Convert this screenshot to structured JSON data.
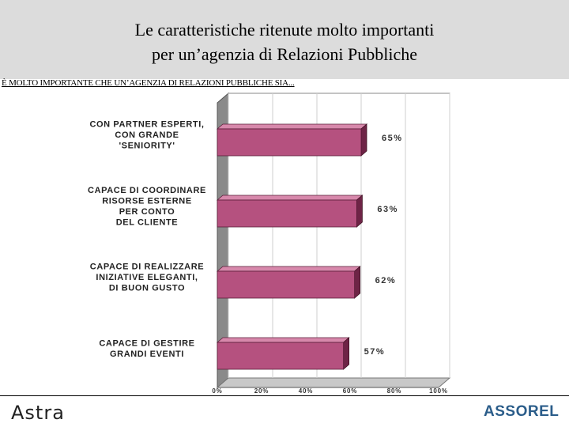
{
  "header": {
    "title_line1": "Le caratteristiche ritenute molto importanti",
    "title_line2": "per un’agenzia di Relazioni Pubbliche"
  },
  "subtitle": "È MOLTO IMPORTANTE CHE UN’AGENZIA DI RELAZIONI PUBBLICHE SIA...",
  "chart_data": {
    "type": "bar",
    "orientation": "horizontal",
    "categories": [
      [
        "CON PARTNER ESPERTI,",
        "CON GRANDE",
        "'SENIORITY'"
      ],
      [
        "CAPACE DI COORDINARE",
        "RISORSE ESTERNE",
        "PER CONTO",
        "DEL CLIENTE"
      ],
      [
        "CAPACE DI REALIZZARE",
        "INIZIATIVE ELEGANTI,",
        "DI BUON GUSTO"
      ],
      [
        "CAPACE DI GESTIRE",
        "GRANDI EVENTI"
      ]
    ],
    "values": [
      65,
      63,
      62,
      57
    ],
    "value_labels": [
      "65%",
      "63%",
      "62%",
      "57%"
    ],
    "xlim": [
      0,
      100
    ],
    "x_ticks": [
      "0%",
      "20%",
      "40%",
      "60%",
      "80%",
      "100%"
    ],
    "grid": true,
    "bar_color": "#b5517f",
    "bar_top_color": "#d788ab",
    "bar_side_color": "#6e2446"
  },
  "footer": {
    "left_logo": "Astra",
    "right_logo": "ASSOREL"
  }
}
